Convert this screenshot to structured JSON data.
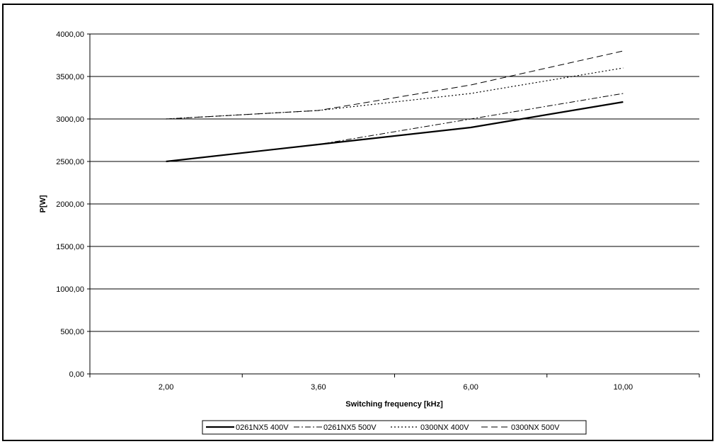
{
  "chart_data": {
    "type": "line",
    "categories": [
      "2,00",
      "3,60",
      "6,00",
      "10,00"
    ],
    "series": [
      {
        "name": "0261NX5 400V",
        "values": [
          2500,
          2700,
          2900,
          3200
        ],
        "style": "solid"
      },
      {
        "name": "0261NX5 500V",
        "values": [
          2500,
          2700,
          3000,
          3300
        ],
        "style": "dashdot"
      },
      {
        "name": "0300NX 400V",
        "values": [
          3000,
          3100,
          3300,
          3600
        ],
        "style": "dotted"
      },
      {
        "name": "0300NX 500V",
        "values": [
          3000,
          3100,
          3400,
          3800
        ],
        "style": "dashed"
      }
    ],
    "xlabel": "Switching frequency [kHz]",
    "ylabel": "P[W]",
    "ylim": [
      0,
      4000
    ],
    "yticks": [
      "0,00",
      "500,00",
      "1000,00",
      "1500,00",
      "2000,00",
      "2500,00",
      "3000,00",
      "3500,00",
      "4000,00"
    ],
    "grid": "horizontal",
    "legend_position": "bottom",
    "colors": {
      "line": "#000000",
      "grid": "#000000",
      "background": "#ffffff"
    }
  }
}
